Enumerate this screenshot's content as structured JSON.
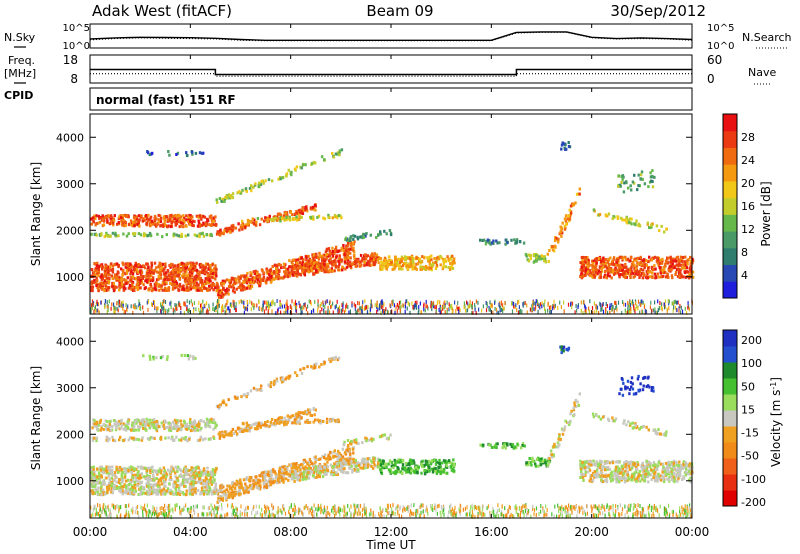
{
  "header": {
    "station": "Adak West (fitACF)",
    "beam": "Beam 09",
    "date": "30/Sep/2012"
  },
  "left_labels": {
    "nsky": "N.Sky",
    "freq_line1": "Freq.",
    "freq_line2": "[MHz]",
    "cpid": "CPID"
  },
  "right_labels": {
    "nsearch": "N.Search",
    "nave": "Nave"
  },
  "cpid_text": "normal (fast) 151 RF",
  "colors": {
    "noise_line": "#000000",
    "background": "#ffffff",
    "power_scale": [
      "#1e1edc",
      "#2848b4",
      "#2e7d6e",
      "#4a9a68",
      "#66b84a",
      "#c2cc2a",
      "#f2c818",
      "#f59a10",
      "#f06a10",
      "#eb3a12",
      "#e81010"
    ],
    "velocity_scale": [
      "#2030c0",
      "#2450d0",
      "#1e8a2e",
      "#45c030",
      "#9adc5c",
      "#c8c8c0",
      "#f0a020",
      "#f08a18",
      "#f06018",
      "#e83010",
      "#e00000"
    ]
  },
  "chart_data": [
    {
      "type": "line",
      "panel": "noise",
      "ylabels_left": [
        "10^5",
        "10^0"
      ],
      "ylabels_right": [
        "10^5",
        "10^0"
      ],
      "xlim": [
        "00:00",
        "24:00"
      ],
      "series": [
        {
          "name": "N.Sky",
          "x": [
            0,
            1,
            2,
            3,
            4,
            5,
            6,
            7,
            8,
            9,
            10,
            11,
            12,
            13,
            14,
            15,
            16,
            17,
            18,
            19,
            20,
            21,
            22,
            23,
            24
          ],
          "values": [
            80,
            150,
            200,
            180,
            160,
            120,
            60,
            40,
            40,
            40,
            40,
            40,
            40,
            40,
            40,
            40,
            40,
            3000,
            4000,
            4000,
            200,
            100,
            150,
            100,
            60
          ]
        },
        {
          "name": "N.Search",
          "x": [
            0,
            1,
            2,
            3,
            4,
            5,
            6,
            7,
            8,
            9,
            10,
            11,
            12,
            13,
            14,
            15,
            16,
            17,
            18,
            19,
            20,
            21,
            22,
            23,
            24
          ],
          "values": [
            50,
            100,
            150,
            120,
            100,
            80,
            40,
            30,
            30,
            30,
            30,
            30,
            30,
            30,
            30,
            30,
            30,
            2000,
            3000,
            3000,
            150,
            80,
            100,
            80,
            40
          ]
        }
      ]
    },
    {
      "type": "line",
      "panel": "frequency-nave",
      "ylabels_left": [
        "18",
        "8"
      ],
      "ylabels_right": [
        "60",
        "0"
      ],
      "ylim_left": [
        8,
        18
      ],
      "ylim_right": [
        0,
        60
      ],
      "series": [
        {
          "name": "Freq.",
          "x": [
            "00:00",
            "05:00",
            "05:00",
            "17:00",
            "17:00",
            "24:00"
          ],
          "values": [
            13,
            13,
            11,
            11,
            13,
            13
          ]
        },
        {
          "name": "Nave",
          "x": [
            "00:00",
            "05:00",
            "05:00",
            "17:00",
            "17:00",
            "24:00"
          ],
          "values": [
            20,
            20,
            14,
            14,
            20,
            20
          ]
        }
      ]
    },
    {
      "type": "heatmap",
      "panel": "power",
      "ylabel": "Slant Range [km]",
      "yticks": [
        "1000",
        "2000",
        "3000",
        "4000"
      ],
      "ylim": [
        200,
        4500
      ],
      "colorbar_label": "Power [dB]",
      "colorbar_ticks": [
        "4",
        "8",
        "12",
        "16",
        "20",
        "24",
        "28"
      ],
      "colorbar_range": [
        0,
        32
      ]
    },
    {
      "type": "heatmap",
      "panel": "velocity",
      "ylabel": "Slant Range [km]",
      "yticks": [
        "1000",
        "2000",
        "3000",
        "4000"
      ],
      "ylim": [
        200,
        4500
      ],
      "colorbar_label": "Velocity [m s",
      "colorbar_label_sup": "-1",
      "colorbar_label_end": "]",
      "colorbar_ticks": [
        "200",
        "100",
        "50",
        "15",
        "-15",
        "-50",
        "-100",
        "-200"
      ]
    }
  ],
  "x_axis": {
    "ticks": [
      "00:00",
      "04:00",
      "08:00",
      "12:00",
      "16:00",
      "20:00",
      "00:00"
    ],
    "label": "Time UT"
  }
}
